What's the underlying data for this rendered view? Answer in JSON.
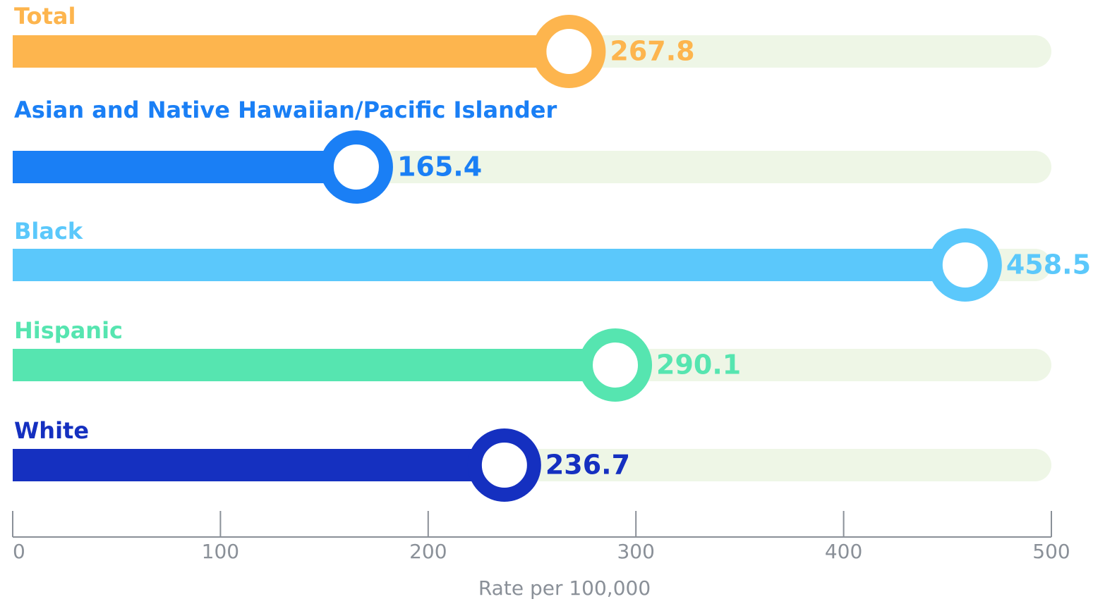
{
  "chart_data": {
    "type": "bar",
    "orientation": "horizontal",
    "categories": [
      "Total",
      "Asian and Native Hawaiian/Pacific Islander",
      "Black",
      "Hispanic",
      "White"
    ],
    "values": [
      267.8,
      165.4,
      458.5,
      290.1,
      236.7
    ],
    "colors": [
      "#fdb54e",
      "#1a7ff5",
      "#5bc8fb",
      "#56e5b0",
      "#1530c0"
    ],
    "xlabel": "Rate per 100,000",
    "xlim": [
      0,
      500
    ],
    "xticks": [
      0,
      100,
      200,
      300,
      400,
      500
    ]
  }
}
